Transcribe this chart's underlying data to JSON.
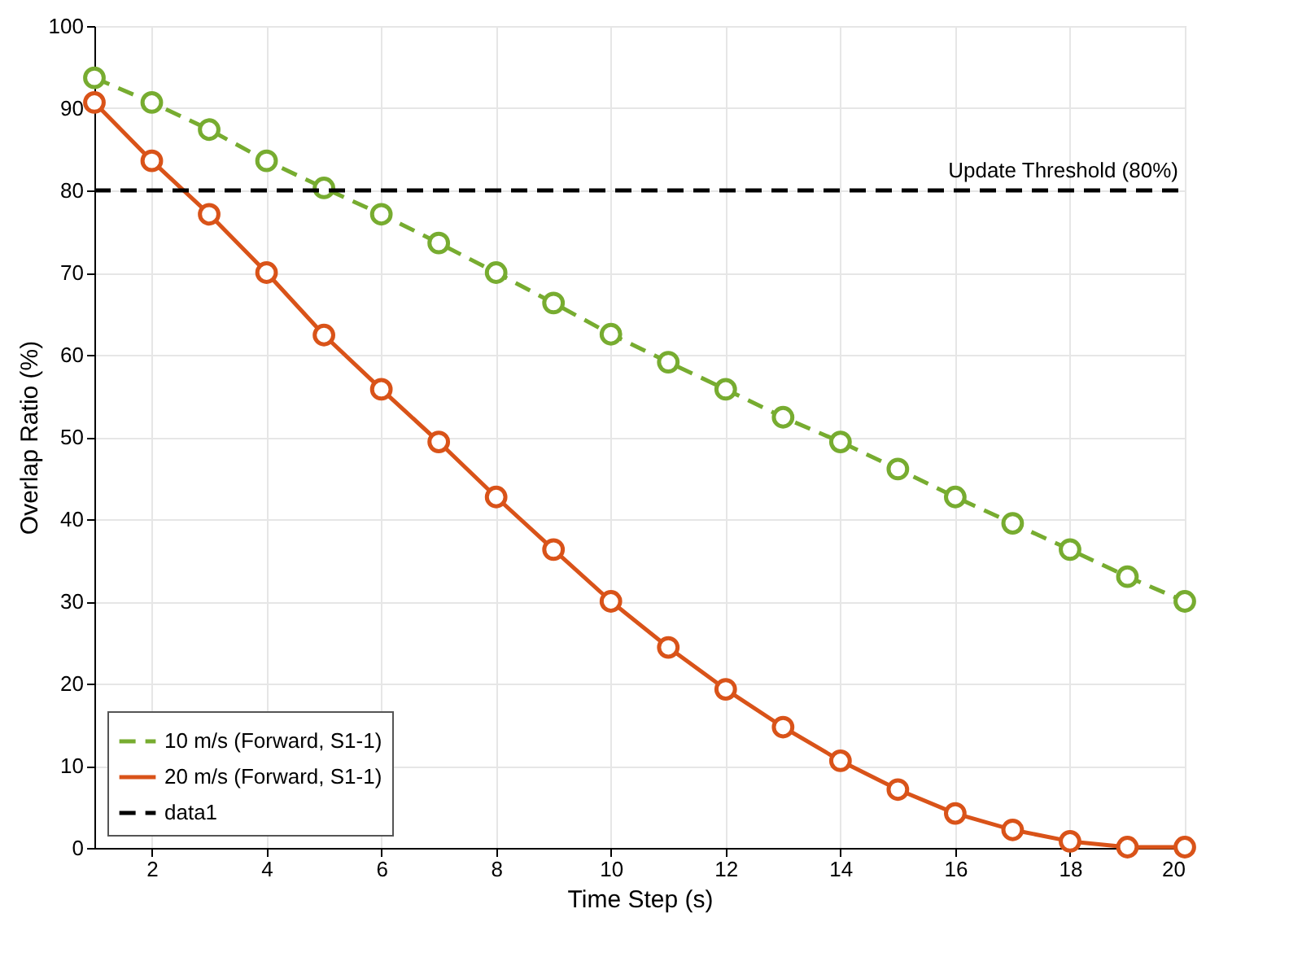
{
  "chart_data": {
    "type": "line",
    "xlabel": "Time Step (s)",
    "ylabel": "Overlap Ratio (%)",
    "x": [
      1,
      2,
      3,
      4,
      5,
      6,
      7,
      8,
      9,
      10,
      11,
      12,
      13,
      14,
      15,
      16,
      17,
      18,
      19,
      20
    ],
    "series": [
      {
        "name": "10 m/s (Forward, S1-1)",
        "color": "#77ac30",
        "line_style": "dashed",
        "marker": "circle",
        "values": [
          93.7,
          90.7,
          87.4,
          83.6,
          80.3,
          77.1,
          73.6,
          70,
          66.3,
          62.5,
          59.1,
          55.8,
          52.4,
          49.4,
          46.1,
          42.7,
          39.5,
          36.3,
          33,
          30
        ]
      },
      {
        "name": "20 m/s (Forward, S1-1)",
        "color": "#d95319",
        "line_style": "solid",
        "marker": "circle",
        "values": [
          90.7,
          83.6,
          77.1,
          70,
          62.4,
          55.8,
          49.4,
          42.7,
          36.3,
          30,
          24.4,
          19.3,
          14.7,
          10.6,
          7.1,
          4.2,
          2.2,
          0.8,
          0.1,
          0.1
        ]
      },
      {
        "name": "data1",
        "color": "#000000",
        "line_style": "dashed",
        "marker": "none",
        "x": [
          1,
          20
        ],
        "values": [
          80,
          80
        ]
      }
    ],
    "annotations": [
      {
        "text": "Update Threshold (80%)",
        "x": 20,
        "y": 80
      }
    ],
    "xlim": [
      1,
      20
    ],
    "xticks": [
      2,
      4,
      6,
      8,
      10,
      12,
      14,
      16,
      18,
      20
    ],
    "ylim": [
      0,
      100
    ],
    "yticks": [
      0,
      10,
      20,
      30,
      40,
      50,
      60,
      70,
      80,
      90,
      100
    ],
    "grid": true,
    "legend": "bottom left"
  }
}
